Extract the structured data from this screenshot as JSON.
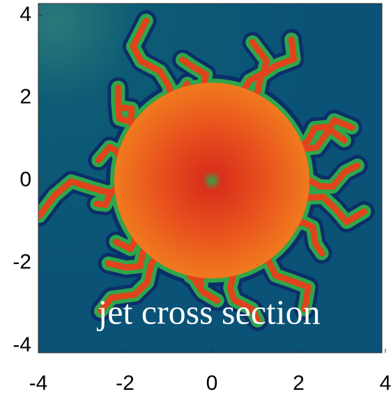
{
  "chart_data": {
    "type": "heatmap",
    "annotation": "jet cross section",
    "xlim": [
      -4,
      4
    ],
    "ylim": [
      -4,
      4
    ],
    "xticks": [
      -4,
      -2,
      0,
      2,
      4
    ],
    "yticks": [
      -4,
      -2,
      0,
      2,
      4
    ]
  }
}
